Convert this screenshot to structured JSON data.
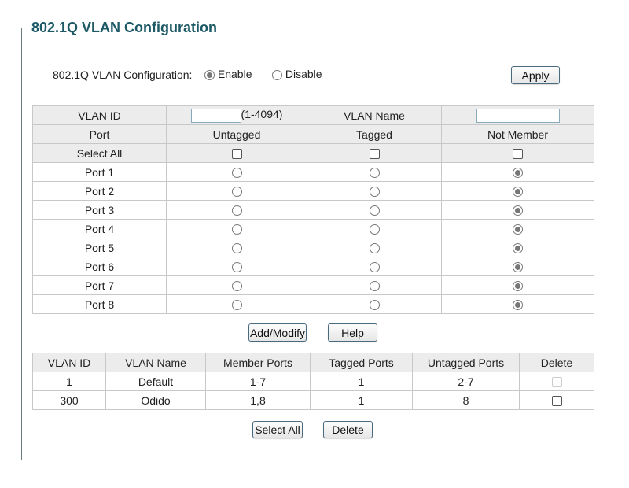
{
  "title": "802.1Q VLAN Configuration",
  "global": {
    "label": "802.1Q VLAN Configuration:",
    "enable_label": "Enable",
    "disable_label": "Disable",
    "selected": "Enable",
    "apply": "Apply"
  },
  "form": {
    "vlan_id_label": "VLAN ID",
    "vlan_id_value": "",
    "vlan_id_range": "(1-4094)",
    "vlan_name_label": "VLAN Name",
    "vlan_name_value": "",
    "headers": [
      "Port",
      "Untagged",
      "Tagged",
      "Not Member"
    ],
    "select_all_label": "Select All",
    "ports": [
      {
        "name": "Port 1",
        "mode": "Not Member"
      },
      {
        "name": "Port 2",
        "mode": "Not Member"
      },
      {
        "name": "Port 3",
        "mode": "Not Member"
      },
      {
        "name": "Port 4",
        "mode": "Not Member"
      },
      {
        "name": "Port 5",
        "mode": "Not Member"
      },
      {
        "name": "Port 6",
        "mode": "Not Member"
      },
      {
        "name": "Port 7",
        "mode": "Not Member"
      },
      {
        "name": "Port 8",
        "mode": "Not Member"
      }
    ],
    "add_modify": "Add/Modify",
    "help": "Help"
  },
  "vlan_table": {
    "headers": [
      "VLAN ID",
      "VLAN Name",
      "Member Ports",
      "Tagged Ports",
      "Untagged Ports",
      "Delete"
    ],
    "rows": [
      {
        "id": "1",
        "name": "Default",
        "member": "1-7",
        "tagged": "1",
        "untagged": "2-7",
        "delete_disabled": true
      },
      {
        "id": "300",
        "name": "Odido",
        "member": "1,8",
        "tagged": "1",
        "untagged": "8",
        "delete_disabled": false
      }
    ],
    "select_all": "Select All",
    "delete": "Delete"
  }
}
